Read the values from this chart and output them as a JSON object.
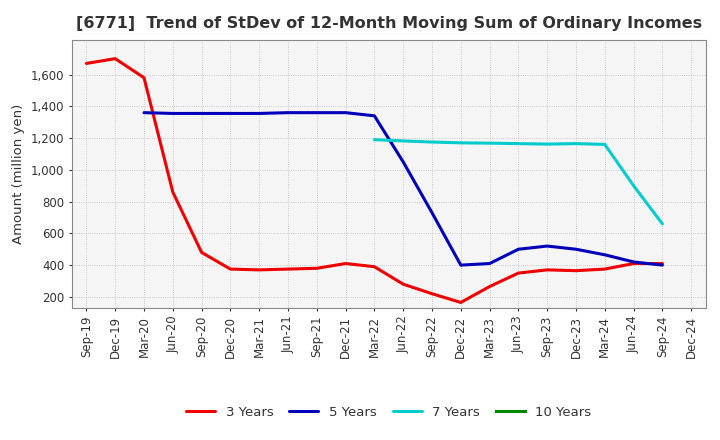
{
  "title": "[6771]  Trend of StDev of 12-Month Moving Sum of Ordinary Incomes",
  "ylabel": "Amount (million yen)",
  "background_color": "#ffffff",
  "plot_bg_color": "#f5f5f5",
  "grid_color": "#bbbbbb",
  "title_color": "#333333",
  "x_labels": [
    "Sep-19",
    "Dec-19",
    "Mar-20",
    "Jun-20",
    "Sep-20",
    "Dec-20",
    "Mar-21",
    "Jun-21",
    "Sep-21",
    "Dec-21",
    "Mar-22",
    "Jun-22",
    "Sep-22",
    "Dec-22",
    "Mar-23",
    "Jun-23",
    "Sep-23",
    "Dec-23",
    "Mar-24",
    "Jun-24",
    "Sep-24",
    "Dec-24"
  ],
  "series": [
    {
      "label": "3 Years",
      "color": "#ee0000",
      "linewidth": 2.2,
      "data": [
        1670,
        1700,
        1580,
        860,
        480,
        375,
        370,
        375,
        380,
        410,
        390,
        280,
        220,
        165,
        265,
        350,
        370,
        365,
        375,
        410,
        410,
        null
      ]
    },
    {
      "label": "5 Years",
      "color": "#0000bb",
      "linewidth": 2.2,
      "data": [
        null,
        null,
        1360,
        1355,
        1355,
        1355,
        1355,
        1360,
        1360,
        1360,
        1340,
        1050,
        730,
        400,
        410,
        500,
        520,
        500,
        465,
        420,
        400,
        null
      ]
    },
    {
      "label": "7 Years",
      "color": "#00cccc",
      "linewidth": 2.2,
      "data": [
        null,
        null,
        null,
        null,
        null,
        null,
        null,
        null,
        null,
        null,
        1190,
        1182,
        1175,
        1170,
        1168,
        1165,
        1162,
        1165,
        1160,
        900,
        660,
        null
      ]
    },
    {
      "label": "10 Years",
      "color": "#008800",
      "linewidth": 2.2,
      "data": [
        null,
        null,
        null,
        null,
        null,
        null,
        null,
        null,
        null,
        null,
        null,
        null,
        null,
        null,
        null,
        null,
        null,
        null,
        null,
        null,
        null,
        null
      ]
    }
  ],
  "ylim": [
    130,
    1820
  ],
  "yticks": [
    200,
    400,
    600,
    800,
    1000,
    1200,
    1400,
    1600
  ],
  "title_fontsize": 11.5,
  "ylabel_fontsize": 9.5,
  "tick_fontsize": 8.5,
  "legend_fontsize": 9.5
}
